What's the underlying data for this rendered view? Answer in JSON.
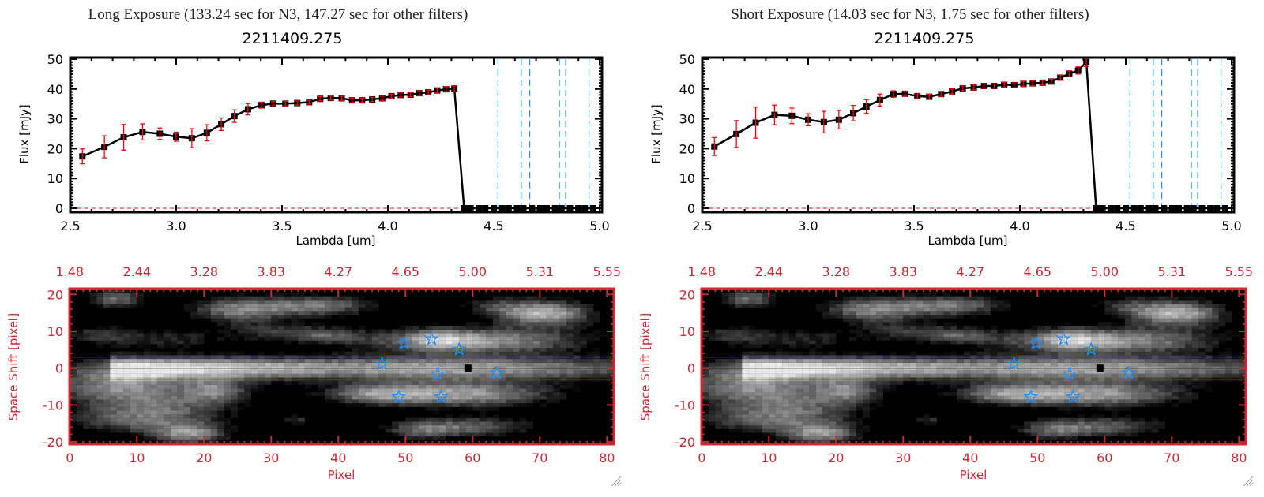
{
  "panels": [
    {
      "title": "Long Exposure (133.24 sec for N3, 147.27 sec for other filters)"
    },
    {
      "title": "Short Exposure (14.03 sec for N3, 1.75 sec for other filters)"
    }
  ],
  "colors": {
    "axis_red": "#d22630",
    "star_blue": "#1e8fff",
    "errorbar_red": "#ff0000",
    "filter_line_blue": "#1e8fff",
    "spectrum_black": "#000000"
  },
  "chart_data": [
    {
      "type": "line",
      "title": "2211409.275",
      "xlabel": "Lambda [um]",
      "ylabel": "Flux [mJy]",
      "xlim": [
        2.5,
        5.0
      ],
      "ylim": [
        0,
        50
      ],
      "xticks": [
        "2.5",
        "3.0",
        "3.5",
        "4.0",
        "4.5",
        "5.0"
      ],
      "yticks": [
        "0",
        "10",
        "20",
        "30",
        "40",
        "50"
      ],
      "x": [
        2.557,
        2.661,
        2.752,
        2.841,
        2.923,
        3.0,
        3.074,
        3.145,
        3.213,
        3.275,
        3.339,
        3.403,
        3.458,
        3.516,
        3.572,
        3.628,
        3.68,
        3.73,
        3.782,
        3.831,
        3.878,
        3.926,
        3.973,
        4.017,
        4.061,
        4.107,
        4.148,
        4.191,
        4.233,
        4.275,
        4.314,
        4.36,
        4.39,
        4.43,
        4.46,
        4.5,
        4.54,
        4.57,
        4.61,
        4.64,
        4.68,
        4.72,
        4.75,
        4.79,
        4.82,
        4.86,
        4.9,
        4.93,
        4.97
      ],
      "y": [
        17.4,
        20.6,
        23.8,
        25.6,
        25.0,
        24.0,
        23.5,
        25.3,
        28.2,
        30.9,
        33.2,
        34.6,
        35.1,
        35.1,
        35.3,
        35.6,
        36.7,
        37.0,
        36.9,
        36.2,
        36.2,
        36.5,
        36.9,
        37.6,
        38.0,
        38.1,
        38.6,
        38.9,
        39.5,
        39.9,
        40.1,
        0,
        0,
        0,
        0,
        0,
        0,
        0,
        0,
        0,
        0,
        0,
        0,
        0,
        0,
        0,
        0,
        0,
        0
      ],
      "yerr": [
        2.5,
        3.7,
        4.3,
        2.7,
        1.9,
        1.5,
        3.2,
        2.7,
        2.1,
        2.1,
        1.9,
        1.0,
        0.7,
        0.8,
        0.7,
        0.7,
        0.7,
        0.7,
        0.7,
        0.7,
        0.7,
        0.7,
        0.7,
        0.7,
        0.7,
        0.7,
        0.8,
        0.8,
        0.8,
        0.8,
        1.0,
        0,
        0,
        0,
        0,
        0,
        0,
        0,
        0,
        0,
        0,
        0,
        0,
        0,
        0,
        0,
        0,
        0,
        0
      ],
      "filter_lines": [
        4.52,
        4.63,
        4.67,
        4.81,
        4.84,
        4.95
      ],
      "zero_line": 0,
      "grid": false
    },
    {
      "type": "heatmap",
      "xlabel": "Pixel",
      "ylabel": "Space Shift [pixel]",
      "xlim": [
        0,
        81
      ],
      "ylim": [
        -21,
        21
      ],
      "xticks": [
        "0",
        "10",
        "20",
        "30",
        "40",
        "50",
        "60",
        "70",
        "80"
      ],
      "yticks": [
        "-20",
        "-10",
        "0",
        "10",
        "20"
      ],
      "top_xticks": [
        "1.48",
        "2.44",
        "3.28",
        "3.83",
        "4.27",
        "4.65",
        "5.00",
        "5.31",
        "5.55"
      ],
      "aperture_lines": [
        3,
        -3
      ],
      "center_line": 0,
      "stars": [
        [
          46.5,
          1.2
        ],
        [
          49.8,
          6.8
        ],
        [
          53.9,
          7.9
        ],
        [
          58.0,
          5.1
        ],
        [
          54.8,
          -1.6
        ],
        [
          63.6,
          -1.3
        ],
        [
          49.0,
          -7.8
        ],
        [
          55.3,
          -7.8
        ]
      ],
      "target_marker": [
        59.3,
        0
      ]
    },
    {
      "type": "line",
      "title": "2211409.275",
      "xlabel": "Lambda [um]",
      "ylabel": "Flux [mJy]",
      "xlim": [
        2.5,
        5.0
      ],
      "ylim": [
        0,
        50
      ],
      "xticks": [
        "2.5",
        "3.0",
        "3.5",
        "4.0",
        "4.5",
        "5.0"
      ],
      "yticks": [
        "0",
        "10",
        "20",
        "30",
        "40",
        "50"
      ],
      "x": [
        2.557,
        2.661,
        2.752,
        2.841,
        2.923,
        3.0,
        3.074,
        3.145,
        3.213,
        3.275,
        3.339,
        3.403,
        3.458,
        3.516,
        3.572,
        3.628,
        3.68,
        3.73,
        3.782,
        3.831,
        3.878,
        3.926,
        3.973,
        4.017,
        4.061,
        4.107,
        4.148,
        4.191,
        4.233,
        4.275,
        4.314,
        4.36,
        4.39,
        4.43,
        4.46,
        4.5,
        4.54,
        4.57,
        4.61,
        4.64,
        4.68,
        4.72,
        4.75,
        4.79,
        4.82,
        4.86,
        4.9,
        4.93,
        4.97
      ],
      "y": [
        20.7,
        24.9,
        28.7,
        31.3,
        31.0,
        29.7,
        28.9,
        29.7,
        31.9,
        34.1,
        36.3,
        38.3,
        38.4,
        37.6,
        37.4,
        38.3,
        39.2,
        40.2,
        40.5,
        41.0,
        41.0,
        41.4,
        41.3,
        41.7,
        41.9,
        42.1,
        42.5,
        43.8,
        45.1,
        46.2,
        49.0,
        0,
        0,
        0,
        0,
        0,
        0,
        0,
        0,
        0,
        0,
        0,
        0,
        0,
        0,
        0,
        0,
        0,
        0
      ],
      "yerr": [
        3.0,
        4.5,
        5.2,
        3.3,
        2.6,
        2.0,
        3.6,
        3.1,
        2.6,
        2.3,
        2.0,
        1.1,
        0.8,
        0.8,
        0.8,
        0.8,
        0.8,
        0.8,
        0.8,
        0.8,
        0.8,
        0.8,
        0.8,
        0.8,
        0.8,
        0.8,
        0.8,
        0.9,
        1.0,
        1.2,
        1.5,
        0,
        0,
        0,
        0,
        0,
        0,
        0,
        0,
        0,
        0,
        0,
        0,
        0,
        0,
        0,
        0,
        0,
        0
      ],
      "filter_lines": [
        4.52,
        4.63,
        4.67,
        4.81,
        4.84,
        4.95
      ],
      "zero_line": 0,
      "grid": false
    },
    {
      "type": "heatmap",
      "xlabel": "Pixel",
      "ylabel": "Space Shift [pixel]",
      "xlim": [
        0,
        81
      ],
      "ylim": [
        -21,
        21
      ],
      "xticks": [
        "0",
        "10",
        "20",
        "30",
        "40",
        "50",
        "60",
        "70",
        "80"
      ],
      "yticks": [
        "-20",
        "-10",
        "0",
        "10",
        "20"
      ],
      "top_xticks": [
        "1.48",
        "2.44",
        "3.28",
        "3.83",
        "4.27",
        "4.65",
        "5.00",
        "5.31",
        "5.55"
      ],
      "aperture_lines": [
        3,
        -3
      ],
      "center_line": 0,
      "stars": [
        [
          46.5,
          1.2
        ],
        [
          49.8,
          6.8
        ],
        [
          53.9,
          7.9
        ],
        [
          58.0,
          5.1
        ],
        [
          54.8,
          -1.6
        ],
        [
          63.6,
          -1.3
        ],
        [
          49.0,
          -7.8
        ],
        [
          55.3,
          -7.8
        ]
      ],
      "target_marker": [
        59.3,
        0
      ]
    }
  ]
}
